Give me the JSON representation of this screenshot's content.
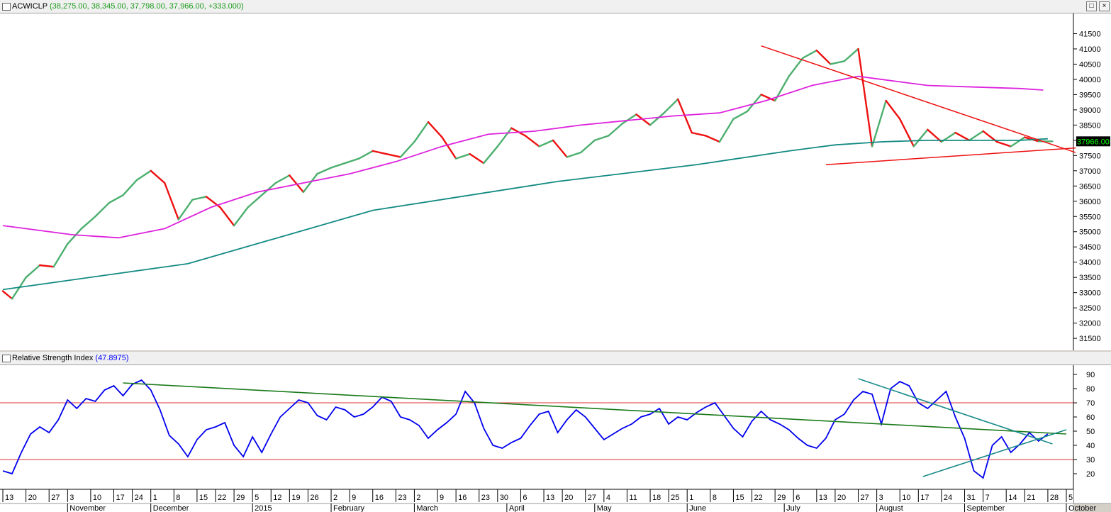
{
  "window": {
    "price_pane_title": "ACWICLP",
    "price_pane_values": "(38,275.00, 38,345.00, 37,798.00, 37,966.00, +333.000)",
    "rsi_pane_title": "Relative Strength Index",
    "rsi_pane_value": "(47.8975)",
    "last_price_label": "37966.00",
    "maximize_glyph": "□",
    "close_glyph": "×"
  },
  "colors": {
    "up_bar": "#4caf6e",
    "down_bar": "#ee1111",
    "ma_long": "#128a82",
    "ma_mid": "#dd22dd",
    "trendline_red": "#ee1111",
    "rsi_line": "#0000ee",
    "rsi_trend_green": "#1a7a1a",
    "rsi_trend_teal": "#1a8a8a",
    "rsi_ref_line": "#dd3333"
  },
  "chart_data": [
    {
      "type": "line",
      "title": "ACWICLP",
      "ylim": [
        31200,
        42000
      ],
      "y_ticks": [
        31500,
        32000,
        32500,
        33000,
        33500,
        34000,
        34500,
        35000,
        35500,
        36000,
        36500,
        37000,
        37500,
        38000,
        38500,
        39000,
        39500,
        40000,
        40500,
        41000,
        41500
      ],
      "x_index_range": [
        0,
        230
      ],
      "series": [
        {
          "role": "price",
          "x": [
            0,
            2,
            5,
            8,
            11,
            14,
            17,
            20,
            23,
            26,
            29,
            32,
            35,
            38,
            41,
            44,
            47,
            50,
            53,
            56,
            59,
            62,
            65,
            68,
            71,
            74,
            77,
            80,
            83,
            86,
            89,
            92,
            95,
            98,
            101,
            104,
            107,
            110,
            113,
            116,
            119,
            122,
            125,
            128,
            131,
            134,
            137,
            140,
            143,
            146,
            149,
            152,
            155,
            158,
            161,
            164,
            167,
            170,
            173,
            176,
            179,
            182,
            185,
            188,
            191,
            194,
            197,
            200,
            203,
            206,
            209,
            212,
            215,
            218,
            221,
            224,
            227
          ],
          "values": [
            33050,
            32800,
            33500,
            33900,
            33850,
            34600,
            35100,
            35500,
            35950,
            36200,
            36700,
            37000,
            36600,
            35400,
            36050,
            36150,
            35800,
            35200,
            35800,
            36200,
            36600,
            36850,
            36300,
            36900,
            37100,
            37250,
            37400,
            37650,
            37550,
            37450,
            37950,
            38600,
            38100,
            37400,
            37550,
            37250,
            37800,
            38400,
            38150,
            37800,
            38000,
            37450,
            37600,
            38000,
            38150,
            38550,
            38850,
            38500,
            38900,
            39350,
            38250,
            38150,
            37950,
            38700,
            38950,
            39500,
            39300,
            40100,
            40700,
            40950,
            40500,
            40600,
            41000,
            37800,
            39300,
            38700,
            37800,
            38350,
            37950,
            38250,
            38000,
            38300,
            37950,
            37800,
            38100,
            37966,
            37966
          ]
        },
        {
          "role": "moving_average_long",
          "x": [
            0,
            40,
            80,
            120,
            150,
            170,
            180,
            190,
            200,
            210,
            220,
            226
          ],
          "values": [
            33100,
            33950,
            35700,
            36650,
            37200,
            37650,
            37850,
            37950,
            38000,
            38000,
            38000,
            38050
          ]
        },
        {
          "role": "moving_average_mid",
          "x": [
            0,
            15,
            25,
            35,
            45,
            55,
            65,
            75,
            85,
            95,
            105,
            115,
            125,
            135,
            145,
            155,
            165,
            175,
            185,
            190,
            195,
            200,
            210,
            220,
            225
          ],
          "values": [
            35200,
            34900,
            34800,
            35100,
            35800,
            36300,
            36600,
            36900,
            37300,
            37800,
            38200,
            38300,
            38500,
            38650,
            38800,
            38900,
            39300,
            39800,
            40100,
            40000,
            39900,
            39800,
            39750,
            39700,
            39650
          ]
        },
        {
          "role": "trendline_down",
          "x": [
            164,
            232
          ],
          "values": [
            41100,
            37600
          ]
        },
        {
          "role": "trendline_up",
          "x": [
            178,
            232
          ],
          "values": [
            37200,
            37750
          ]
        }
      ]
    },
    {
      "type": "line",
      "title": "Relative Strength Index",
      "ylim": [
        10,
        95
      ],
      "y_ticks": [
        20,
        30,
        40,
        50,
        60,
        70,
        80,
        90
      ],
      "reference_lines": [
        30,
        70
      ],
      "x_index_range": [
        0,
        230
      ],
      "series": [
        {
          "role": "rsi",
          "x": [
            0,
            2,
            4,
            6,
            8,
            10,
            12,
            14,
            16,
            18,
            20,
            22,
            24,
            26,
            28,
            30,
            32,
            34,
            36,
            38,
            40,
            42,
            44,
            46,
            48,
            50,
            52,
            54,
            56,
            58,
            60,
            62,
            64,
            66,
            68,
            70,
            72,
            74,
            76,
            78,
            80,
            82,
            84,
            86,
            88,
            90,
            92,
            94,
            96,
            98,
            100,
            102,
            104,
            106,
            108,
            110,
            112,
            114,
            116,
            118,
            120,
            122,
            124,
            126,
            128,
            130,
            132,
            134,
            136,
            138,
            140,
            142,
            144,
            146,
            148,
            150,
            152,
            154,
            156,
            158,
            160,
            162,
            164,
            166,
            168,
            170,
            172,
            174,
            176,
            178,
            180,
            182,
            184,
            186,
            188,
            190,
            192,
            194,
            196,
            198,
            200,
            202,
            204,
            206,
            208,
            210,
            212,
            214,
            216,
            218,
            220,
            222,
            224,
            226
          ],
          "values": [
            22,
            20,
            35,
            48,
            53,
            49,
            58,
            72,
            66,
            73,
            71,
            79,
            82,
            75,
            83,
            86,
            79,
            65,
            47,
            41,
            32,
            44,
            51,
            53,
            56,
            40,
            32,
            46,
            35,
            48,
            60,
            66,
            72,
            70,
            61,
            58,
            67,
            65,
            60,
            62,
            67,
            74,
            71,
            60,
            58,
            54,
            45,
            51,
            56,
            62,
            78,
            70,
            52,
            40,
            38,
            42,
            45,
            54,
            62,
            64,
            49,
            58,
            65,
            60,
            52,
            44,
            48,
            52,
            55,
            60,
            62,
            66,
            55,
            60,
            58,
            63,
            67,
            70,
            61,
            52,
            46,
            57,
            64,
            58,
            55,
            51,
            45,
            40,
            38,
            45,
            58,
            62,
            72,
            78,
            76,
            55,
            80,
            85,
            82,
            70,
            66,
            72,
            78,
            60,
            45,
            22,
            17,
            40,
            46,
            35,
            41,
            49,
            43,
            48
          ]
        },
        {
          "role": "trend_green_long",
          "x": [
            26,
            230
          ],
          "values": [
            84,
            48
          ]
        },
        {
          "role": "trend_teal_down",
          "x": [
            185,
            227
          ],
          "values": [
            87,
            41
          ]
        },
        {
          "role": "trend_teal_up",
          "x": [
            199,
            230
          ],
          "values": [
            18,
            51
          ]
        }
      ]
    }
  ],
  "x_axis": {
    "day_ticks": [
      {
        "i": 0,
        "label": "13"
      },
      {
        "i": 5,
        "label": "20"
      },
      {
        "i": 10,
        "label": "27"
      },
      {
        "i": 14,
        "label": "3"
      },
      {
        "i": 19,
        "label": "10"
      },
      {
        "i": 24,
        "label": "17"
      },
      {
        "i": 28,
        "label": "24"
      },
      {
        "i": 32,
        "label": "1"
      },
      {
        "i": 37,
        "label": "8"
      },
      {
        "i": 42,
        "label": "15"
      },
      {
        "i": 46,
        "label": "22"
      },
      {
        "i": 50,
        "label": "29"
      },
      {
        "i": 54,
        "label": "5"
      },
      {
        "i": 58,
        "label": "12"
      },
      {
        "i": 62,
        "label": "19"
      },
      {
        "i": 66,
        "label": "26"
      },
      {
        "i": 71,
        "label": "2"
      },
      {
        "i": 75,
        "label": "9"
      },
      {
        "i": 80,
        "label": "16"
      },
      {
        "i": 85,
        "label": "23"
      },
      {
        "i": 89,
        "label": "2"
      },
      {
        "i": 94,
        "label": "9"
      },
      {
        "i": 98,
        "label": "16"
      },
      {
        "i": 103,
        "label": "23"
      },
      {
        "i": 107,
        "label": "30"
      },
      {
        "i": 112,
        "label": "6"
      },
      {
        "i": 117,
        "label": "13"
      },
      {
        "i": 121,
        "label": "20"
      },
      {
        "i": 126,
        "label": "27"
      },
      {
        "i": 130,
        "label": "4"
      },
      {
        "i": 135,
        "label": "11"
      },
      {
        "i": 140,
        "label": "18"
      },
      {
        "i": 144,
        "label": "25"
      },
      {
        "i": 148,
        "label": "1"
      },
      {
        "i": 153,
        "label": "8"
      },
      {
        "i": 158,
        "label": "15"
      },
      {
        "i": 162,
        "label": "22"
      },
      {
        "i": 167,
        "label": "29"
      },
      {
        "i": 171,
        "label": "6"
      },
      {
        "i": 176,
        "label": "13"
      },
      {
        "i": 180,
        "label": "20"
      },
      {
        "i": 185,
        "label": "27"
      },
      {
        "i": 189,
        "label": "3"
      },
      {
        "i": 194,
        "label": "10"
      },
      {
        "i": 198,
        "label": "17"
      },
      {
        "i": 203,
        "label": "24"
      },
      {
        "i": 208,
        "label": "31"
      },
      {
        "i": 212,
        "label": "7"
      },
      {
        "i": 217,
        "label": "14"
      },
      {
        "i": 221,
        "label": "21"
      },
      {
        "i": 226,
        "label": "28"
      },
      {
        "i": 230,
        "label": "5"
      }
    ],
    "month_labels": [
      {
        "i": 14,
        "label": "November"
      },
      {
        "i": 32,
        "label": "December"
      },
      {
        "i": 54,
        "label": "2015"
      },
      {
        "i": 71,
        "label": "February"
      },
      {
        "i": 89,
        "label": "March"
      },
      {
        "i": 109,
        "label": "April"
      },
      {
        "i": 128,
        "label": "May"
      },
      {
        "i": 148,
        "label": "June"
      },
      {
        "i": 169,
        "label": "July"
      },
      {
        "i": 189,
        "label": "August"
      },
      {
        "i": 208,
        "label": "September"
      },
      {
        "i": 230,
        "label": "October"
      }
    ]
  }
}
